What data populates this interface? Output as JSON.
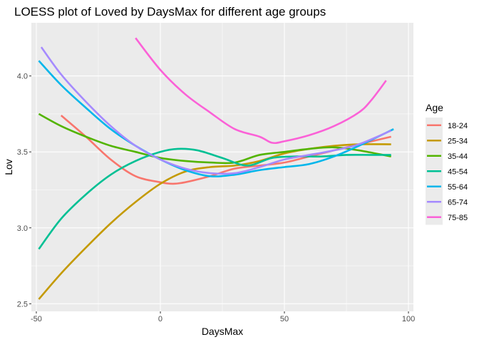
{
  "chart_data": {
    "type": "line",
    "title": "LOESS plot of Loved by DaysMax for different age groups",
    "xlabel": "DaysMax",
    "ylabel": "Lov",
    "xlim": [
      -52,
      102
    ],
    "ylim": [
      2.45,
      4.35
    ],
    "x_ticks": [
      -50,
      0,
      50,
      100
    ],
    "x_tick_labels": [
      "-50",
      "0",
      "50",
      "100"
    ],
    "y_ticks": [
      2.5,
      3.0,
      3.5,
      4.0
    ],
    "y_tick_labels": [
      "2.5",
      "3.0",
      "3.5",
      "4.0"
    ],
    "grid": true,
    "legend_title": "Age",
    "legend_position": "right",
    "series": [
      {
        "name": "18-24",
        "color": "#F8766D",
        "x": [
          -40,
          -30,
          -20,
          -10,
          0,
          5,
          10,
          20,
          30,
          40,
          50,
          60,
          70,
          80,
          93
        ],
        "y": [
          3.74,
          3.6,
          3.45,
          3.34,
          3.3,
          3.29,
          3.3,
          3.34,
          3.39,
          3.41,
          3.43,
          3.47,
          3.51,
          3.55,
          3.6
        ]
      },
      {
        "name": "25-34",
        "color": "#C49A00",
        "x": [
          -49,
          -40,
          -30,
          -20,
          -10,
          0,
          10,
          20,
          30,
          40,
          50,
          60,
          70,
          80,
          93
        ],
        "y": [
          2.53,
          2.7,
          2.87,
          3.03,
          3.17,
          3.29,
          3.37,
          3.4,
          3.41,
          3.44,
          3.49,
          3.52,
          3.54,
          3.55,
          3.55
        ]
      },
      {
        "name": "35-44",
        "color": "#53B400",
        "x": [
          -49,
          -40,
          -30,
          -20,
          -10,
          0,
          10,
          20,
          30,
          40,
          50,
          60,
          70,
          80,
          93
        ],
        "y": [
          3.75,
          3.67,
          3.6,
          3.54,
          3.5,
          3.46,
          3.44,
          3.43,
          3.43,
          3.48,
          3.5,
          3.52,
          3.53,
          3.51,
          3.47
        ]
      },
      {
        "name": "45-54",
        "color": "#00C094",
        "x": [
          -49,
          -40,
          -30,
          -20,
          -10,
          0,
          7,
          15,
          25,
          35,
          45,
          55,
          65,
          75,
          85,
          93
        ],
        "y": [
          2.86,
          3.06,
          3.22,
          3.35,
          3.44,
          3.5,
          3.52,
          3.51,
          3.46,
          3.41,
          3.46,
          3.47,
          3.47,
          3.48,
          3.48,
          3.48
        ]
      },
      {
        "name": "55-64",
        "color": "#00B6EB",
        "x": [
          -49,
          -40,
          -30,
          -20,
          -10,
          0,
          10,
          20,
          30,
          40,
          50,
          60,
          70,
          80,
          94
        ],
        "y": [
          4.1,
          3.94,
          3.79,
          3.65,
          3.54,
          3.45,
          3.38,
          3.34,
          3.35,
          3.38,
          3.4,
          3.42,
          3.47,
          3.54,
          3.65
        ]
      },
      {
        "name": "65-74",
        "color": "#A58AFF",
        "x": [
          -48,
          -40,
          -30,
          -20,
          -10,
          0,
          10,
          20,
          30,
          40,
          50,
          60,
          70,
          80,
          93
        ],
        "y": [
          4.19,
          4.01,
          3.83,
          3.67,
          3.54,
          3.45,
          3.39,
          3.36,
          3.36,
          3.4,
          3.45,
          3.48,
          3.51,
          3.55,
          3.64
        ]
      },
      {
        "name": "75-85",
        "color": "#FB61D7",
        "x": [
          -10,
          0,
          10,
          20,
          30,
          40,
          45,
          50,
          60,
          70,
          80,
          85,
          91
        ],
        "y": [
          4.25,
          4.04,
          3.88,
          3.76,
          3.65,
          3.6,
          3.56,
          3.57,
          3.61,
          3.67,
          3.76,
          3.84,
          3.97
        ]
      }
    ]
  }
}
